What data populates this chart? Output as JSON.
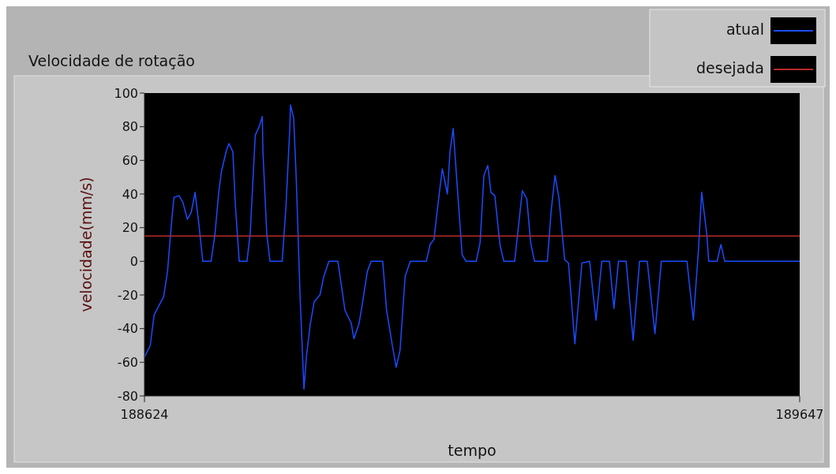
{
  "chart_data": {
    "type": "line",
    "title": "Velocidade de rotação",
    "xlabel": "tempo",
    "ylabel": "velocidade(mm/s)",
    "xlim": [
      188624,
      189647
    ],
    "xticks": [
      188624,
      189647
    ],
    "ylim": [
      -80,
      100
    ],
    "yticks": [
      -80,
      -60,
      -40,
      -20,
      0,
      20,
      40,
      60,
      80,
      100
    ],
    "grid": false,
    "legend": "top right",
    "series": [
      {
        "name": "atual",
        "color": "#1a4cff",
        "x": [
          188624,
          188633,
          188639,
          188647,
          188654,
          188660,
          188666,
          188670,
          188678,
          188684,
          188691,
          188697,
          188703,
          188709,
          188715,
          188728,
          188734,
          188740,
          188744,
          188752,
          188756,
          188762,
          188766,
          188772,
          188784,
          188789,
          188797,
          188803,
          188808,
          188809,
          188815,
          188820,
          188839,
          188845,
          188851,
          188852,
          188857,
          188861,
          188867,
          188873,
          188877,
          188883,
          188889,
          188898,
          188904,
          188912,
          188926,
          188937,
          188947,
          188951,
          188959,
          188963,
          188972,
          188978,
          188996,
          189002,
          189011,
          189017,
          189023,
          189031,
          189039,
          189064,
          189070,
          189076,
          189082,
          189089,
          189097,
          189101,
          189106,
          189113,
          189120,
          189126,
          189142,
          189148,
          189154,
          189160,
          189165,
          189171,
          189179,
          189185,
          189202,
          189208,
          189214,
          189221,
          189227,
          189233,
          189253,
          189259,
          189265,
          189271,
          189280,
          189286,
          189296,
          189307,
          189319,
          189329,
          189338,
          189350,
          189357,
          189364,
          189376,
          189387,
          189397,
          189409,
          189421,
          189431,
          189471,
          189481,
          189489,
          189494,
          189502,
          189505,
          189518,
          189524,
          189530,
          189647
        ],
        "values": [
          -57,
          -50,
          -32,
          -26,
          -21,
          -6,
          22,
          38,
          39,
          35,
          25,
          29,
          41,
          22,
          0,
          0,
          16,
          41,
          53,
          66,
          70,
          65,
          33,
          0,
          0,
          16,
          75,
          80,
          86,
          65,
          16,
          0,
          0,
          33,
          80,
          93,
          85,
          49,
          -21,
          -76,
          -56,
          -37,
          -24,
          -20,
          -9,
          0,
          0,
          -29,
          -37,
          -46,
          -37,
          -28,
          -6,
          0,
          0,
          -29,
          -50,
          -63,
          -53,
          -9,
          0,
          0,
          10,
          13,
          33,
          55,
          40,
          65,
          79,
          41,
          4,
          0,
          0,
          11,
          51,
          57,
          41,
          39,
          10,
          0,
          0,
          21,
          42,
          37,
          11,
          0,
          0,
          30,
          51,
          38,
          1,
          -1,
          -49,
          -1,
          0,
          -35,
          0,
          0,
          -28,
          0,
          0,
          -47,
          0,
          0,
          -43,
          0,
          0,
          -35,
          7,
          41,
          16,
          0,
          0,
          10,
          0,
          0
        ]
      },
      {
        "name": "desejada",
        "color": "#b52a2a",
        "x": [
          188624,
          189647
        ],
        "values": [
          15,
          15
        ]
      }
    ]
  }
}
